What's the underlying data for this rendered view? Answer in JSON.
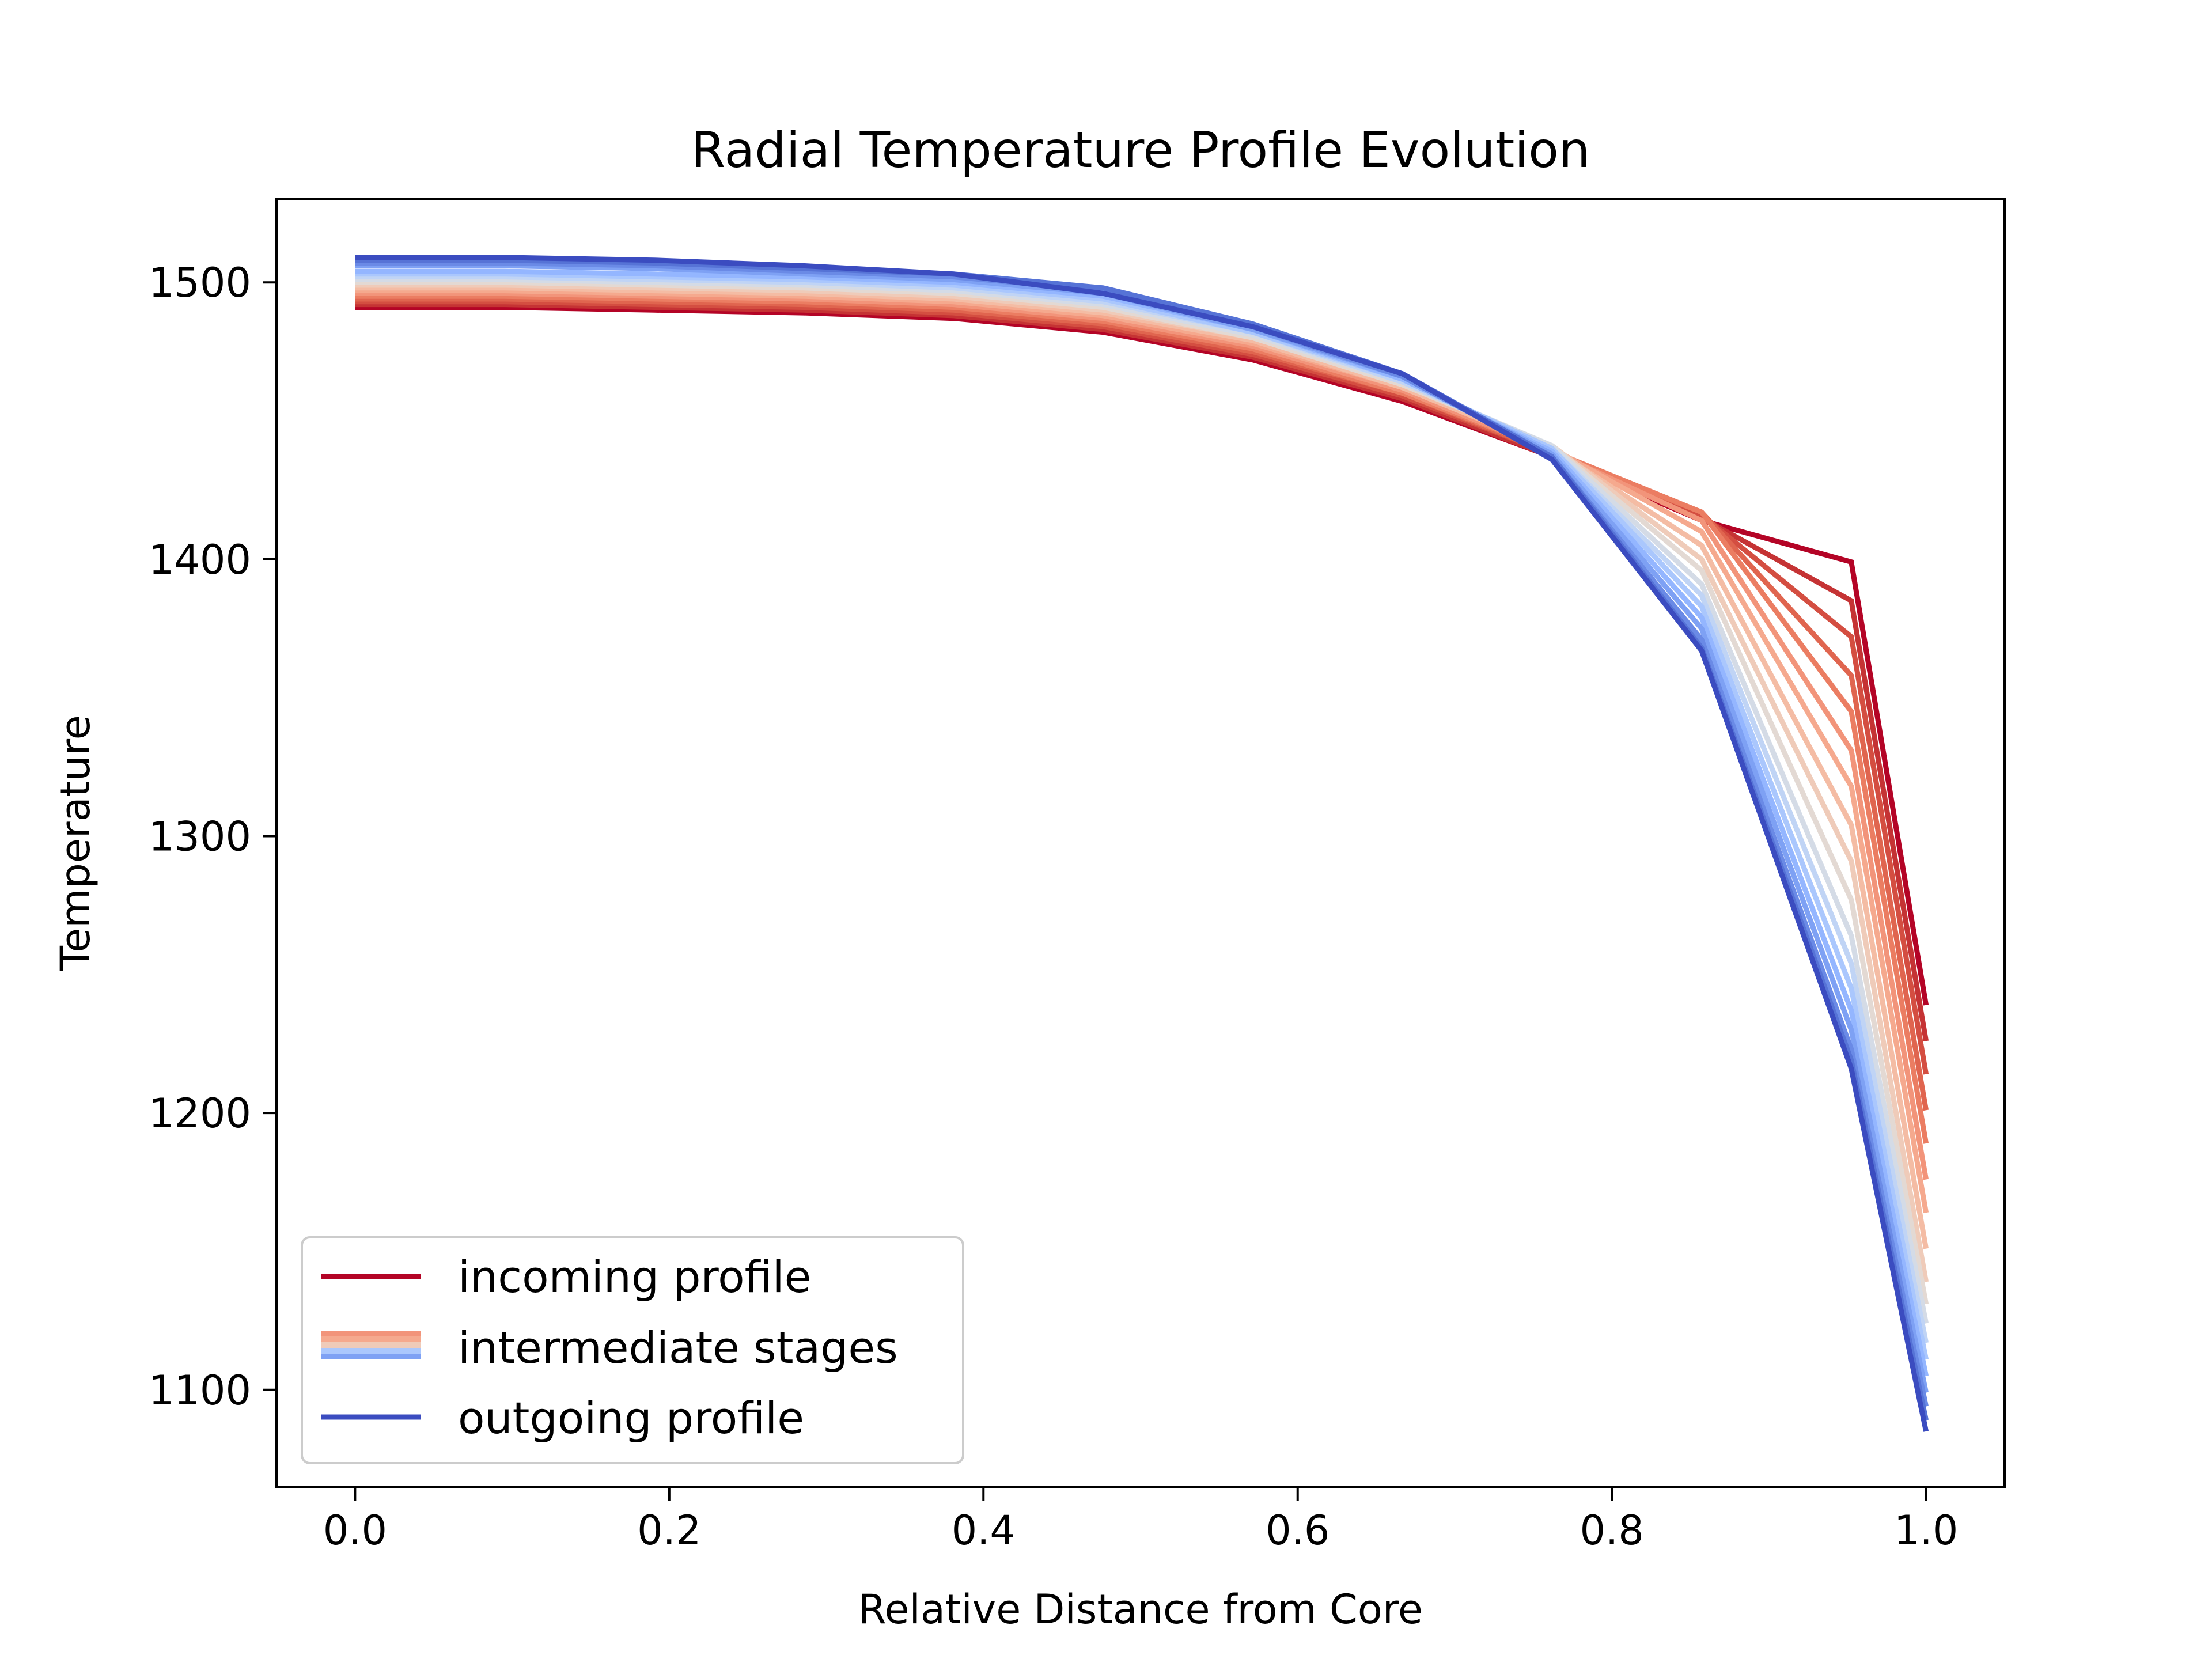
{
  "chart_data": {
    "type": "line",
    "title": "Radial Temperature Profile Evolution",
    "xlabel": "Relative Distance from Core",
    "ylabel": "Temperature",
    "xlim": [
      -0.05,
      1.05
    ],
    "ylim": [
      1065,
      1530
    ],
    "xticks": [
      "0.0",
      "0.2",
      "0.4",
      "0.6",
      "0.8",
      "1.0"
    ],
    "yticks": [
      "1100",
      "1200",
      "1300",
      "1400",
      "1500"
    ],
    "x": [
      0.0,
      0.0952,
      0.1905,
      0.2857,
      0.381,
      0.4762,
      0.5714,
      0.6667,
      0.7619,
      0.8571,
      0.9524,
      1.0
    ],
    "series": [
      {
        "name": "incoming profile",
        "color": "#b40426",
        "values": [
          1491,
          1491,
          1490,
          1489,
          1487,
          1482,
          1472,
          1457,
          1437,
          1414,
          1399,
          1239
        ]
      },
      {
        "name": "",
        "color": "#c53334",
        "values": [
          1492,
          1492,
          1491,
          1490,
          1488,
          1483,
          1473,
          1458,
          1437,
          1415,
          1385,
          1226
        ]
      },
      {
        "name": "",
        "color": "#d44e41",
        "values": [
          1493,
          1493,
          1492,
          1491,
          1489,
          1484,
          1474,
          1459,
          1438,
          1416,
          1372,
          1214
        ]
      },
      {
        "name": "",
        "color": "#e0654f",
        "values": [
          1494,
          1494,
          1493,
          1492,
          1490,
          1485,
          1475,
          1460,
          1438,
          1417,
          1358,
          1201
        ]
      },
      {
        "name": "",
        "color": "#eb7d62",
        "values": [
          1495,
          1495,
          1494,
          1493,
          1491,
          1486,
          1476,
          1460,
          1439,
          1417,
          1345,
          1189
        ]
      },
      {
        "name": "",
        "color": "#f2947a",
        "values": [
          1496,
          1496,
          1495,
          1494,
          1492,
          1487,
          1477,
          1461,
          1439,
          1414,
          1331,
          1176
        ]
      },
      {
        "name": "",
        "color": "#f5a98e",
        "values": [
          1497,
          1497,
          1496,
          1495,
          1493,
          1488,
          1478,
          1462,
          1440,
          1410,
          1318,
          1164
        ]
      },
      {
        "name": "",
        "color": "#f4bca4",
        "values": [
          1498,
          1498,
          1497,
          1496,
          1494,
          1489,
          1479,
          1462,
          1440,
          1405,
          1304,
          1151
        ]
      },
      {
        "name": "",
        "color": "#efcbb9",
        "values": [
          1499,
          1499,
          1498,
          1497,
          1495,
          1490,
          1480,
          1463,
          1441,
          1400,
          1291,
          1139
        ]
      },
      {
        "name": "",
        "color": "#e3d9d3",
        "values": [
          1500,
          1500,
          1499,
          1498,
          1496,
          1491,
          1480,
          1463,
          1441,
          1396,
          1277,
          1131
        ]
      },
      {
        "name": "",
        "color": "#d4dbe6",
        "values": [
          1501,
          1501,
          1500,
          1499,
          1497,
          1492,
          1481,
          1464,
          1441,
          1391,
          1264,
          1124
        ]
      },
      {
        "name": "",
        "color": "#c0d4f5",
        "values": [
          1502,
          1502,
          1501,
          1500,
          1498,
          1493,
          1482,
          1464,
          1440,
          1387,
          1254,
          1117
        ]
      },
      {
        "name": "",
        "color": "#aac7fd",
        "values": [
          1503,
          1503,
          1502,
          1501,
          1499,
          1494,
          1482,
          1465,
          1440,
          1383,
          1245,
          1111
        ]
      },
      {
        "name": "",
        "color": "#94b6ff",
        "values": [
          1504,
          1504,
          1503,
          1502,
          1500,
          1495,
          1483,
          1465,
          1439,
          1379,
          1237,
          1105
        ]
      },
      {
        "name": "",
        "color": "#7ea1f4",
        "values": [
          1506,
          1506,
          1505,
          1503,
          1501,
          1496,
          1483,
          1466,
          1438,
          1375,
          1230,
          1099
        ]
      },
      {
        "name": "",
        "color": "#6a8ae6",
        "values": [
          1507,
          1507,
          1506,
          1504,
          1502,
          1497,
          1484,
          1466,
          1437,
          1371,
          1223,
          1094
        ]
      },
      {
        "name": "",
        "color": "#5673d6",
        "values": [
          1508,
          1508,
          1507,
          1505,
          1503,
          1498,
          1485,
          1467,
          1437,
          1368,
          1219,
          1089
        ]
      },
      {
        "name": "outgoing profile",
        "color": "#3b4cc0",
        "values": [
          1509,
          1509,
          1508,
          1506,
          1503,
          1496,
          1484,
          1467,
          1436,
          1367,
          1216,
          1085
        ]
      }
    ],
    "legend": {
      "position": "lower-left",
      "entries": [
        "incoming profile",
        "intermediate stages",
        "outgoing profile"
      ],
      "intermediate_colors": [
        "#f2947a",
        "#f5a98e",
        "#efcbb9",
        "#aac7fd",
        "#7ea1f4"
      ]
    }
  }
}
